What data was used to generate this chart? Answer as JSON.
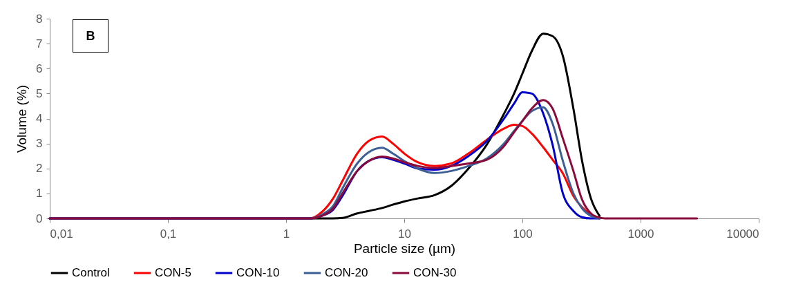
{
  "chart_data": {
    "type": "line",
    "xlabel": "Particle size (µm)",
    "ylabel": "Volume (%)",
    "annotations": [
      "B"
    ],
    "log": "x",
    "legend": "bottom",
    "xlim": [
      0.01,
      10000
    ],
    "ylim": [
      0,
      8
    ],
    "xticks": [
      {
        "value": 0.01,
        "label": "0,01"
      },
      {
        "value": 0.1,
        "label": "0,1"
      },
      1,
      10,
      100,
      1000,
      10000
    ],
    "yticks": [
      0,
      1,
      2,
      3,
      4,
      5,
      6,
      7,
      8
    ],
    "x": [
      0.01,
      1.6,
      2,
      2.5,
      3,
      4,
      5,
      6.5,
      8,
      10,
      13,
      18,
      25,
      35,
      50,
      70,
      85,
      100,
      120,
      150,
      180,
      220,
      270,
      320,
      380,
      450,
      500,
      3000
    ],
    "series": [
      {
        "name": "Control",
        "color": "#000000",
        "values": [
          0,
          0,
          0,
          0,
          0.02,
          0.2,
          0.3,
          0.42,
          0.55,
          0.68,
          0.8,
          0.93,
          1.3,
          2.0,
          2.96,
          4.2,
          5.0,
          5.8,
          6.7,
          7.4,
          7.3,
          6.5,
          4.4,
          2.3,
          0.8,
          0.1,
          null,
          null
        ]
      },
      {
        "name": "CON-5",
        "color": "#ff0000",
        "values": [
          0,
          0,
          0.25,
          0.8,
          1.5,
          2.6,
          3.1,
          3.28,
          3.0,
          2.6,
          2.25,
          2.1,
          2.2,
          2.6,
          3.15,
          3.6,
          3.75,
          3.7,
          3.4,
          2.85,
          2.35,
          1.8,
          0.9,
          0.45,
          0.15,
          0.02,
          null,
          null
        ]
      },
      {
        "name": "CON-10",
        "color": "#0000cc",
        "values": [
          0,
          0,
          0.1,
          0.35,
          0.9,
          1.9,
          2.3,
          2.45,
          2.35,
          2.2,
          2.0,
          1.95,
          2.1,
          2.5,
          3.1,
          4.0,
          4.6,
          5.05,
          5.0,
          4.2,
          2.95,
          1.0,
          0.3,
          0.05,
          0,
          0,
          null,
          null
        ]
      },
      {
        "name": "CON-20",
        "color": "#3c5f96",
        "values": [
          0,
          0,
          0.15,
          0.5,
          1.2,
          2.2,
          2.65,
          2.83,
          2.6,
          2.3,
          2.0,
          1.82,
          1.9,
          2.1,
          2.4,
          3.0,
          3.5,
          3.9,
          4.3,
          4.45,
          3.8,
          2.3,
          1.0,
          0.4,
          0.1,
          0,
          null,
          null
        ]
      },
      {
        "name": "CON-30",
        "color": "#8b0a3c",
        "values": [
          0,
          0,
          0.1,
          0.4,
          1.0,
          1.9,
          2.3,
          2.48,
          2.4,
          2.25,
          2.1,
          2.02,
          2.1,
          2.2,
          2.35,
          2.9,
          3.45,
          3.9,
          4.4,
          4.74,
          4.4,
          3.2,
          1.9,
          0.75,
          0.2,
          0.03,
          0,
          0
        ]
      }
    ]
  }
}
